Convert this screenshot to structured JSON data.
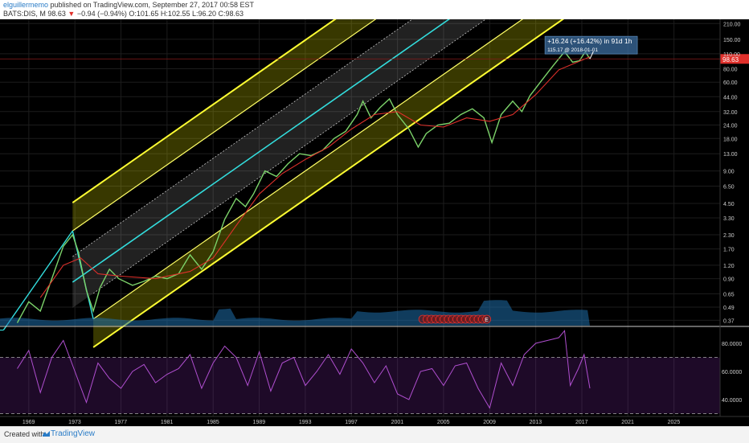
{
  "header": {
    "author": "elguillermemo",
    "published_text": "published on TradingView.com, September 27, 2017 00:58 EST",
    "symbol": "BATS:DIS, M",
    "last": "98.63",
    "change": "−0.94 (−0.94%)",
    "ohlc": "O:101.65 H:102.55 L:96.20 C:98.63"
  },
  "footer": {
    "created_label": "Created with",
    "brand": "TradingView"
  },
  "chart_data": {
    "type": "line",
    "price_axis": {
      "scale": "log",
      "ticks": [
        210,
        150,
        110,
        80,
        60,
        44,
        32,
        24,
        18,
        13,
        9,
        6.5,
        4.5,
        3.3,
        2.3,
        1.7,
        1.2,
        0.9,
        0.65,
        0.49,
        0.37
      ],
      "tick_labels": [
        "210.00",
        "150.00",
        "110.00",
        "80.00",
        "60.00",
        "44.00",
        "32.00",
        "24.00",
        "18.00",
        "13.00",
        "9.00",
        "6.50",
        "4.50",
        "3.30",
        "2.30",
        "1.70",
        "1.20",
        "0.90",
        "0.65",
        "0.49",
        "0.37"
      ],
      "range": [
        0.33,
        230
      ],
      "last_price_label": "98.63",
      "last_price": 98.63
    },
    "rsi_axis": {
      "ticks": [
        80,
        60,
        40
      ],
      "tick_labels": [
        "80.0000",
        "60.0000",
        "40.0000"
      ],
      "range": [
        28,
        92
      ],
      "band": [
        30,
        70
      ]
    },
    "time_axis": {
      "range": [
        1966.5,
        2029
      ],
      "ticks": [
        1969,
        1973,
        1977,
        1981,
        1985,
        1989,
        1993,
        1997,
        2001,
        2005,
        2009,
        2013,
        2017,
        2021,
        2025
      ],
      "tick_labels": [
        "1969",
        "1973",
        "1977",
        "1981",
        "1985",
        "1989",
        "1993",
        "1997",
        "2001",
        "2005",
        "2009",
        "2013",
        "2017",
        "2021",
        "2025"
      ]
    },
    "price_series": [
      [
        1968.0,
        0.35
      ],
      [
        1969.0,
        0.55
      ],
      [
        1970.0,
        0.45
      ],
      [
        1971.0,
        0.9
      ],
      [
        1972.0,
        1.8
      ],
      [
        1972.8,
        2.3
      ],
      [
        1973.3,
        1.6
      ],
      [
        1974.0,
        0.7
      ],
      [
        1974.6,
        0.45
      ],
      [
        1975.2,
        0.75
      ],
      [
        1976.0,
        1.1
      ],
      [
        1976.8,
        0.9
      ],
      [
        1978.0,
        0.78
      ],
      [
        1979.0,
        0.85
      ],
      [
        1980.0,
        0.95
      ],
      [
        1981.0,
        0.9
      ],
      [
        1982.0,
        1.0
      ],
      [
        1983.0,
        1.5
      ],
      [
        1984.0,
        1.1
      ],
      [
        1985.0,
        1.6
      ],
      [
        1986.0,
        3.2
      ],
      [
        1987.0,
        5.0
      ],
      [
        1987.8,
        4.2
      ],
      [
        1988.5,
        5.5
      ],
      [
        1989.5,
        9.0
      ],
      [
        1990.5,
        8.0
      ],
      [
        1991.5,
        10.5
      ],
      [
        1992.5,
        13.0
      ],
      [
        1993.5,
        12.5
      ],
      [
        1994.5,
        14.0
      ],
      [
        1995.5,
        18.0
      ],
      [
        1996.5,
        21.0
      ],
      [
        1997.5,
        30.0
      ],
      [
        1998.0,
        40.0
      ],
      [
        1998.7,
        28.0
      ],
      [
        1999.5,
        35.0
      ],
      [
        2000.3,
        42.0
      ],
      [
        2001.0,
        30.0
      ],
      [
        2002.0,
        22.0
      ],
      [
        2002.8,
        15.0
      ],
      [
        2003.5,
        20.0
      ],
      [
        2004.5,
        24.0
      ],
      [
        2005.5,
        25.0
      ],
      [
        2006.5,
        30.0
      ],
      [
        2007.5,
        34.0
      ],
      [
        2008.5,
        28.0
      ],
      [
        2009.2,
        16.5
      ],
      [
        2010.0,
        30.0
      ],
      [
        2011.0,
        40.0
      ],
      [
        2011.8,
        32.0
      ],
      [
        2012.5,
        45.0
      ],
      [
        2013.5,
        62.0
      ],
      [
        2014.5,
        85.0
      ],
      [
        2015.5,
        115.0
      ],
      [
        2016.2,
        92.0
      ],
      [
        2016.8,
        95.0
      ],
      [
        2017.3,
        115.0
      ],
      [
        2017.7,
        98.63
      ]
    ],
    "moving_average_series": [
      [
        1970.0,
        0.6
      ],
      [
        1972.0,
        1.2
      ],
      [
        1973.5,
        1.4
      ],
      [
        1975.0,
        1.0
      ],
      [
        1977.0,
        0.95
      ],
      [
        1980.0,
        0.9
      ],
      [
        1983.0,
        1.05
      ],
      [
        1985.0,
        1.4
      ],
      [
        1987.0,
        2.8
      ],
      [
        1989.0,
        5.5
      ],
      [
        1991.0,
        8.5
      ],
      [
        1993.0,
        11.5
      ],
      [
        1995.0,
        15.0
      ],
      [
        1997.0,
        22.0
      ],
      [
        1999.0,
        30.0
      ],
      [
        2001.0,
        32.0
      ],
      [
        2003.0,
        24.0
      ],
      [
        2005.0,
        23.0
      ],
      [
        2007.0,
        28.0
      ],
      [
        2009.0,
        26.0
      ],
      [
        2011.0,
        30.0
      ],
      [
        2013.0,
        46.0
      ],
      [
        2015.0,
        78.0
      ],
      [
        2017.7,
        103.0
      ]
    ],
    "pitchfork": {
      "pivot_a": [
        1966.8,
        0.3
      ],
      "pivot_b": [
        1972.8,
        2.5
      ],
      "pivot_c": [
        1974.6,
        0.38
      ],
      "median_slope_per_year": 0.0747
    },
    "annotation": {
      "main": "+16.24 (+16.42%) in 91d 1h",
      "sub": "115.17 @ 2018-01-01",
      "target_price": 115.17,
      "target_date": "2018-01-01"
    },
    "rsi_series": [
      [
        1968,
        62
      ],
      [
        1969,
        75
      ],
      [
        1970,
        45
      ],
      [
        1971,
        70
      ],
      [
        1972,
        82
      ],
      [
        1973,
        60
      ],
      [
        1974,
        38
      ],
      [
        1975,
        66
      ],
      [
        1976,
        55
      ],
      [
        1977,
        48
      ],
      [
        1978,
        60
      ],
      [
        1979,
        65
      ],
      [
        1980,
        52
      ],
      [
        1981,
        58
      ],
      [
        1982,
        62
      ],
      [
        1983,
        72
      ],
      [
        1984,
        48
      ],
      [
        1985,
        66
      ],
      [
        1986,
        78
      ],
      [
        1987,
        70
      ],
      [
        1988,
        50
      ],
      [
        1989,
        74
      ],
      [
        1990,
        46
      ],
      [
        1991,
        66
      ],
      [
        1992,
        70
      ],
      [
        1993,
        50
      ],
      [
        1994,
        60
      ],
      [
        1995,
        72
      ],
      [
        1996,
        58
      ],
      [
        1997,
        76
      ],
      [
        1998,
        66
      ],
      [
        1999,
        52
      ],
      [
        2000,
        64
      ],
      [
        2001,
        44
      ],
      [
        2002,
        40
      ],
      [
        2003,
        60
      ],
      [
        2004,
        62
      ],
      [
        2005,
        50
      ],
      [
        2006,
        64
      ],
      [
        2007,
        66
      ],
      [
        2008,
        48
      ],
      [
        2009,
        34
      ],
      [
        2010,
        66
      ],
      [
        2011,
        50
      ],
      [
        2012,
        72
      ],
      [
        2013,
        80
      ],
      [
        2014,
        82
      ],
      [
        2015,
        84
      ],
      [
        2015.5,
        89
      ],
      [
        2016,
        50
      ],
      [
        2016.7,
        62
      ],
      [
        2017.2,
        72
      ],
      [
        2017.7,
        48
      ]
    ]
  }
}
